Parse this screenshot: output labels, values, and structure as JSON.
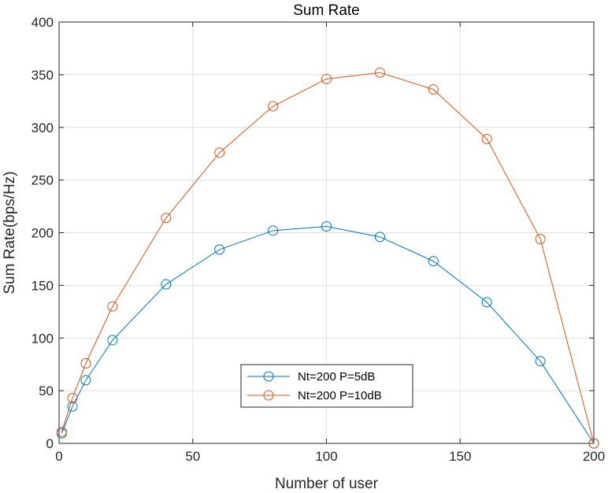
{
  "chart_data": {
    "type": "line",
    "title": "Sum Rate",
    "xlabel": "Number of user",
    "ylabel": "Sum Rate(bps/Hz)",
    "xlim": [
      0,
      200
    ],
    "ylim": [
      0,
      400
    ],
    "xticks": [
      0,
      50,
      100,
      150,
      200
    ],
    "yticks": [
      0,
      50,
      100,
      150,
      200,
      250,
      300,
      350,
      400
    ],
    "grid": true,
    "legend_position": "bottom-center",
    "x": [
      1,
      5,
      10,
      20,
      40,
      60,
      80,
      100,
      120,
      140,
      160,
      180,
      200
    ],
    "series": [
      {
        "name": "Nt=200 P=5dB",
        "color": "#0072BD",
        "marker": "circle",
        "values": [
          9.5,
          35,
          60,
          98,
          151,
          184,
          202,
          206,
          196,
          173,
          134,
          78,
          0
        ]
      },
      {
        "name": "Nt=200 P=10dB",
        "color": "#D95319",
        "marker": "circle",
        "values": [
          11,
          43,
          76,
          130,
          214,
          276,
          320,
          346,
          352,
          336,
          289,
          194,
          0
        ]
      }
    ]
  }
}
